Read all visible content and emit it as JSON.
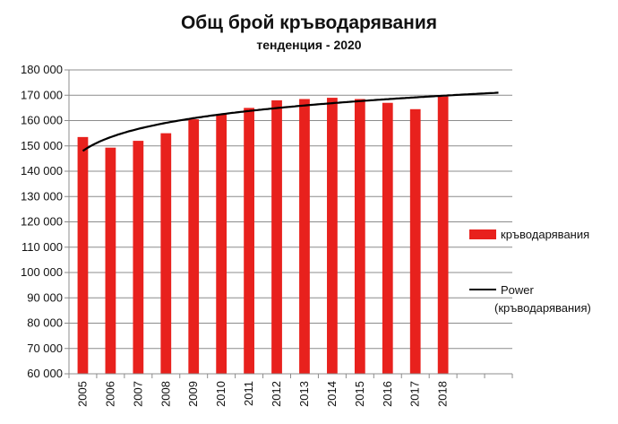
{
  "chart_data": {
    "type": "bar",
    "title": "Общ брой кръводарявания",
    "subtitle": "тенденция - 2020",
    "categories": [
      "2005",
      "2006",
      "2007",
      "2008",
      "2009",
      "2010",
      "2011",
      "2012",
      "2013",
      "2014",
      "2015",
      "2016",
      "2017",
      "2018",
      "",
      ""
    ],
    "series": [
      {
        "name": "кръводарявания",
        "color": "#e8211d",
        "values": [
          153500,
          149300,
          152000,
          155000,
          160500,
          162500,
          165000,
          168000,
          168500,
          169000,
          168500,
          167000,
          164500,
          169500,
          null,
          null
        ]
      }
    ],
    "trendline": {
      "type": "power",
      "label_line1": "Power",
      "label_line2": "(кръводарявания)",
      "color": "#000000",
      "start_value": 148000,
      "end_value": 171000
    },
    "ylim": [
      60000,
      180000
    ],
    "ytick_step": 10000,
    "ytick_labels": [
      "60 000",
      "70 000",
      "80 000",
      "90 000",
      "100 000",
      "110 000",
      "120 000",
      "130 000",
      "140 000",
      "150 000",
      "160 000",
      "170 000",
      "180 000"
    ],
    "grid": true,
    "legend_position": "right"
  }
}
